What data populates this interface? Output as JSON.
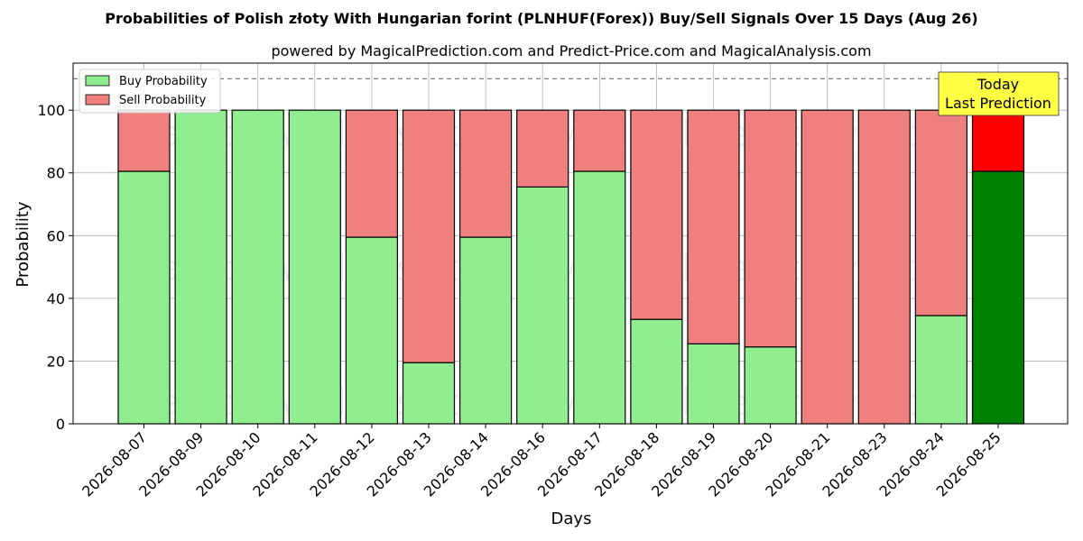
{
  "chart_data": {
    "type": "bar",
    "stacked": true,
    "title": "Probabilities of Polish złoty With Hungarian forint (PLNHUF(Forex)) Buy/Sell Signals Over 15 Days (Aug 26)",
    "subtitle": "powered by MagicalPrediction.com and Predict-Price.com and MagicalAnalysis.com",
    "xlabel": "Days",
    "ylabel": "Probability",
    "ylim": [
      0,
      115
    ],
    "yticks": [
      0,
      20,
      40,
      60,
      80,
      100
    ],
    "grid": true,
    "legend_position": "top-left",
    "reference_line": 110,
    "categories": [
      "2026-08-07",
      "2026-08-09",
      "2026-08-10",
      "2026-08-11",
      "2026-08-12",
      "2026-08-13",
      "2026-08-14",
      "2026-08-16",
      "2026-08-17",
      "2026-08-18",
      "2026-08-19",
      "2026-08-20",
      "2026-08-21",
      "2026-08-23",
      "2026-08-24",
      "2026-08-25"
    ],
    "series": [
      {
        "name": "Buy Probability",
        "values": [
          80.5,
          100,
          100,
          100,
          59.5,
          19.5,
          59.5,
          75.5,
          80.5,
          33.3,
          25.5,
          24.5,
          0,
          0,
          34.5,
          80.5
        ],
        "color": "#90ee90",
        "highlight_color": "#008000"
      },
      {
        "name": "Sell Probability",
        "values": [
          19.5,
          0,
          0,
          0,
          40.5,
          80.5,
          40.5,
          24.5,
          19.5,
          66.7,
          74.5,
          75.5,
          100,
          100,
          65.5,
          19.5
        ],
        "color": "#f08080",
        "highlight_color": "#ff0000"
      }
    ],
    "highlight_index": 15,
    "annotation": {
      "line1": "Today",
      "line2": "Last Prediction",
      "background": "#ffff44"
    },
    "watermarks": [
      "MagicalAnalysis.com",
      "MagicalPrediction.com"
    ]
  }
}
